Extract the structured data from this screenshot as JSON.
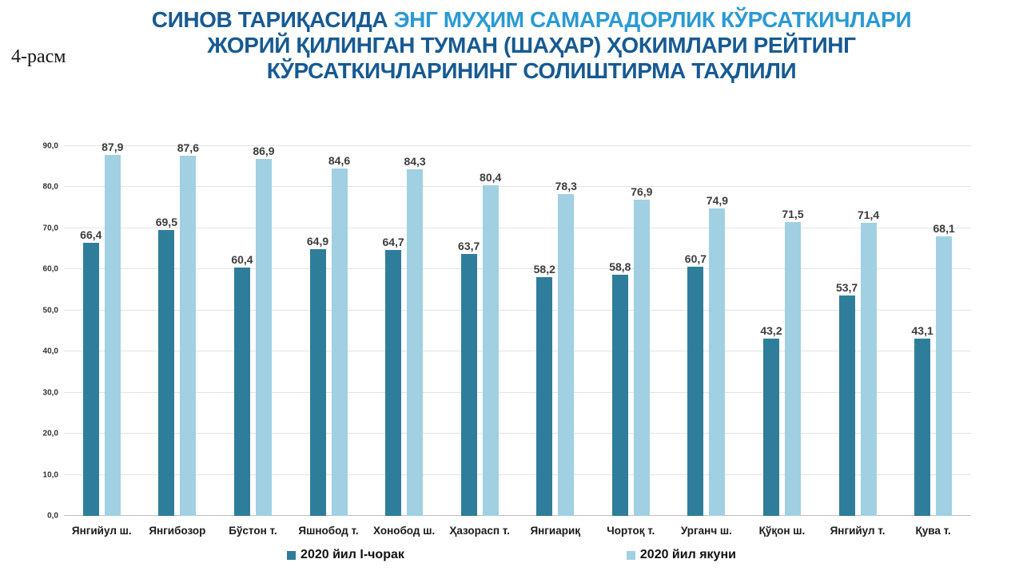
{
  "figure_label": "4-расм",
  "title": {
    "line1_dark": "СИНОВ ТАРИҚАСИДА ",
    "line1_light": "ЭНГ МУҲИМ САМАРАДОРЛИК КЎРСАТКИЧЛАРИ",
    "line2": "ЖОРИЙ ҚИЛИНГАН ТУМАН (ШАҲАР) ҲОКИМЛАРИ РЕЙТИНГ",
    "line3": "КЎРСАТКИЧЛАРИНИНГ СОЛИШТИРМА ТАҲЛИЛИ",
    "color_dark": "#175A92",
    "color_light": "#2B9AD4"
  },
  "chart_data": {
    "type": "bar",
    "categories": [
      "Янгийул ш.",
      "Янгибозор",
      "Бўстон т.",
      "Яшнобод т.",
      "Хонобод ш.",
      "Ҳазорасп т.",
      "Янгиариқ",
      "Чортоқ т.",
      "Урганч ш.",
      "Қўқон ш.",
      "Янгийул т.",
      "Қува т."
    ],
    "series": [
      {
        "name": "2020 йил I-чорак",
        "color": "#2E7E9B",
        "values": [
          66.4,
          69.5,
          60.4,
          64.9,
          64.7,
          63.7,
          58.2,
          58.8,
          60.7,
          43.2,
          53.7,
          43.1
        ]
      },
      {
        "name": "2020 йил якуни",
        "color": "#A0D0E2",
        "values": [
          87.9,
          87.6,
          86.9,
          84.6,
          84.3,
          80.4,
          78.3,
          76.9,
          74.9,
          71.5,
          71.4,
          68.1
        ]
      }
    ],
    "ylim": [
      0,
      90
    ],
    "yticks": [
      0,
      10,
      20,
      30,
      40,
      50,
      60,
      70,
      80,
      90
    ],
    "decimal_separator": ",",
    "grid": true,
    "legend_position": "bottom"
  }
}
